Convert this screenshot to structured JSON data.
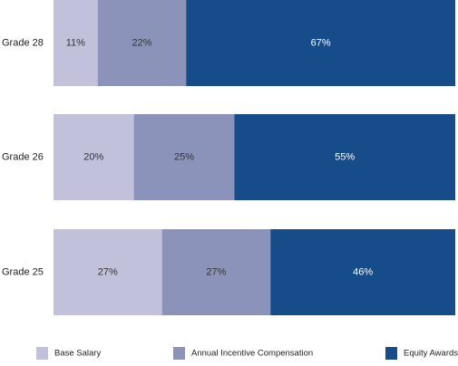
{
  "chart_data": {
    "type": "bar",
    "orientation": "horizontal",
    "stacked": true,
    "percent": true,
    "categories": [
      "Grade 28",
      "Grade 26",
      "Grade 25"
    ],
    "series": [
      {
        "name": "Base Salary",
        "color": "#c1c1dc",
        "label_color": "#333333",
        "values": [
          11,
          20,
          27
        ]
      },
      {
        "name": "Annual Incentive Compensation",
        "color": "#8b93bb",
        "label_color": "#333333",
        "values": [
          22,
          25,
          27
        ]
      },
      {
        "name": "Equity Awards",
        "color": "#174c8a",
        "label_color": "#ffffff",
        "values": [
          67,
          55,
          46
        ]
      }
    ],
    "xlim": [
      0,
      100
    ],
    "grid": false,
    "legend_position": "bottom"
  }
}
